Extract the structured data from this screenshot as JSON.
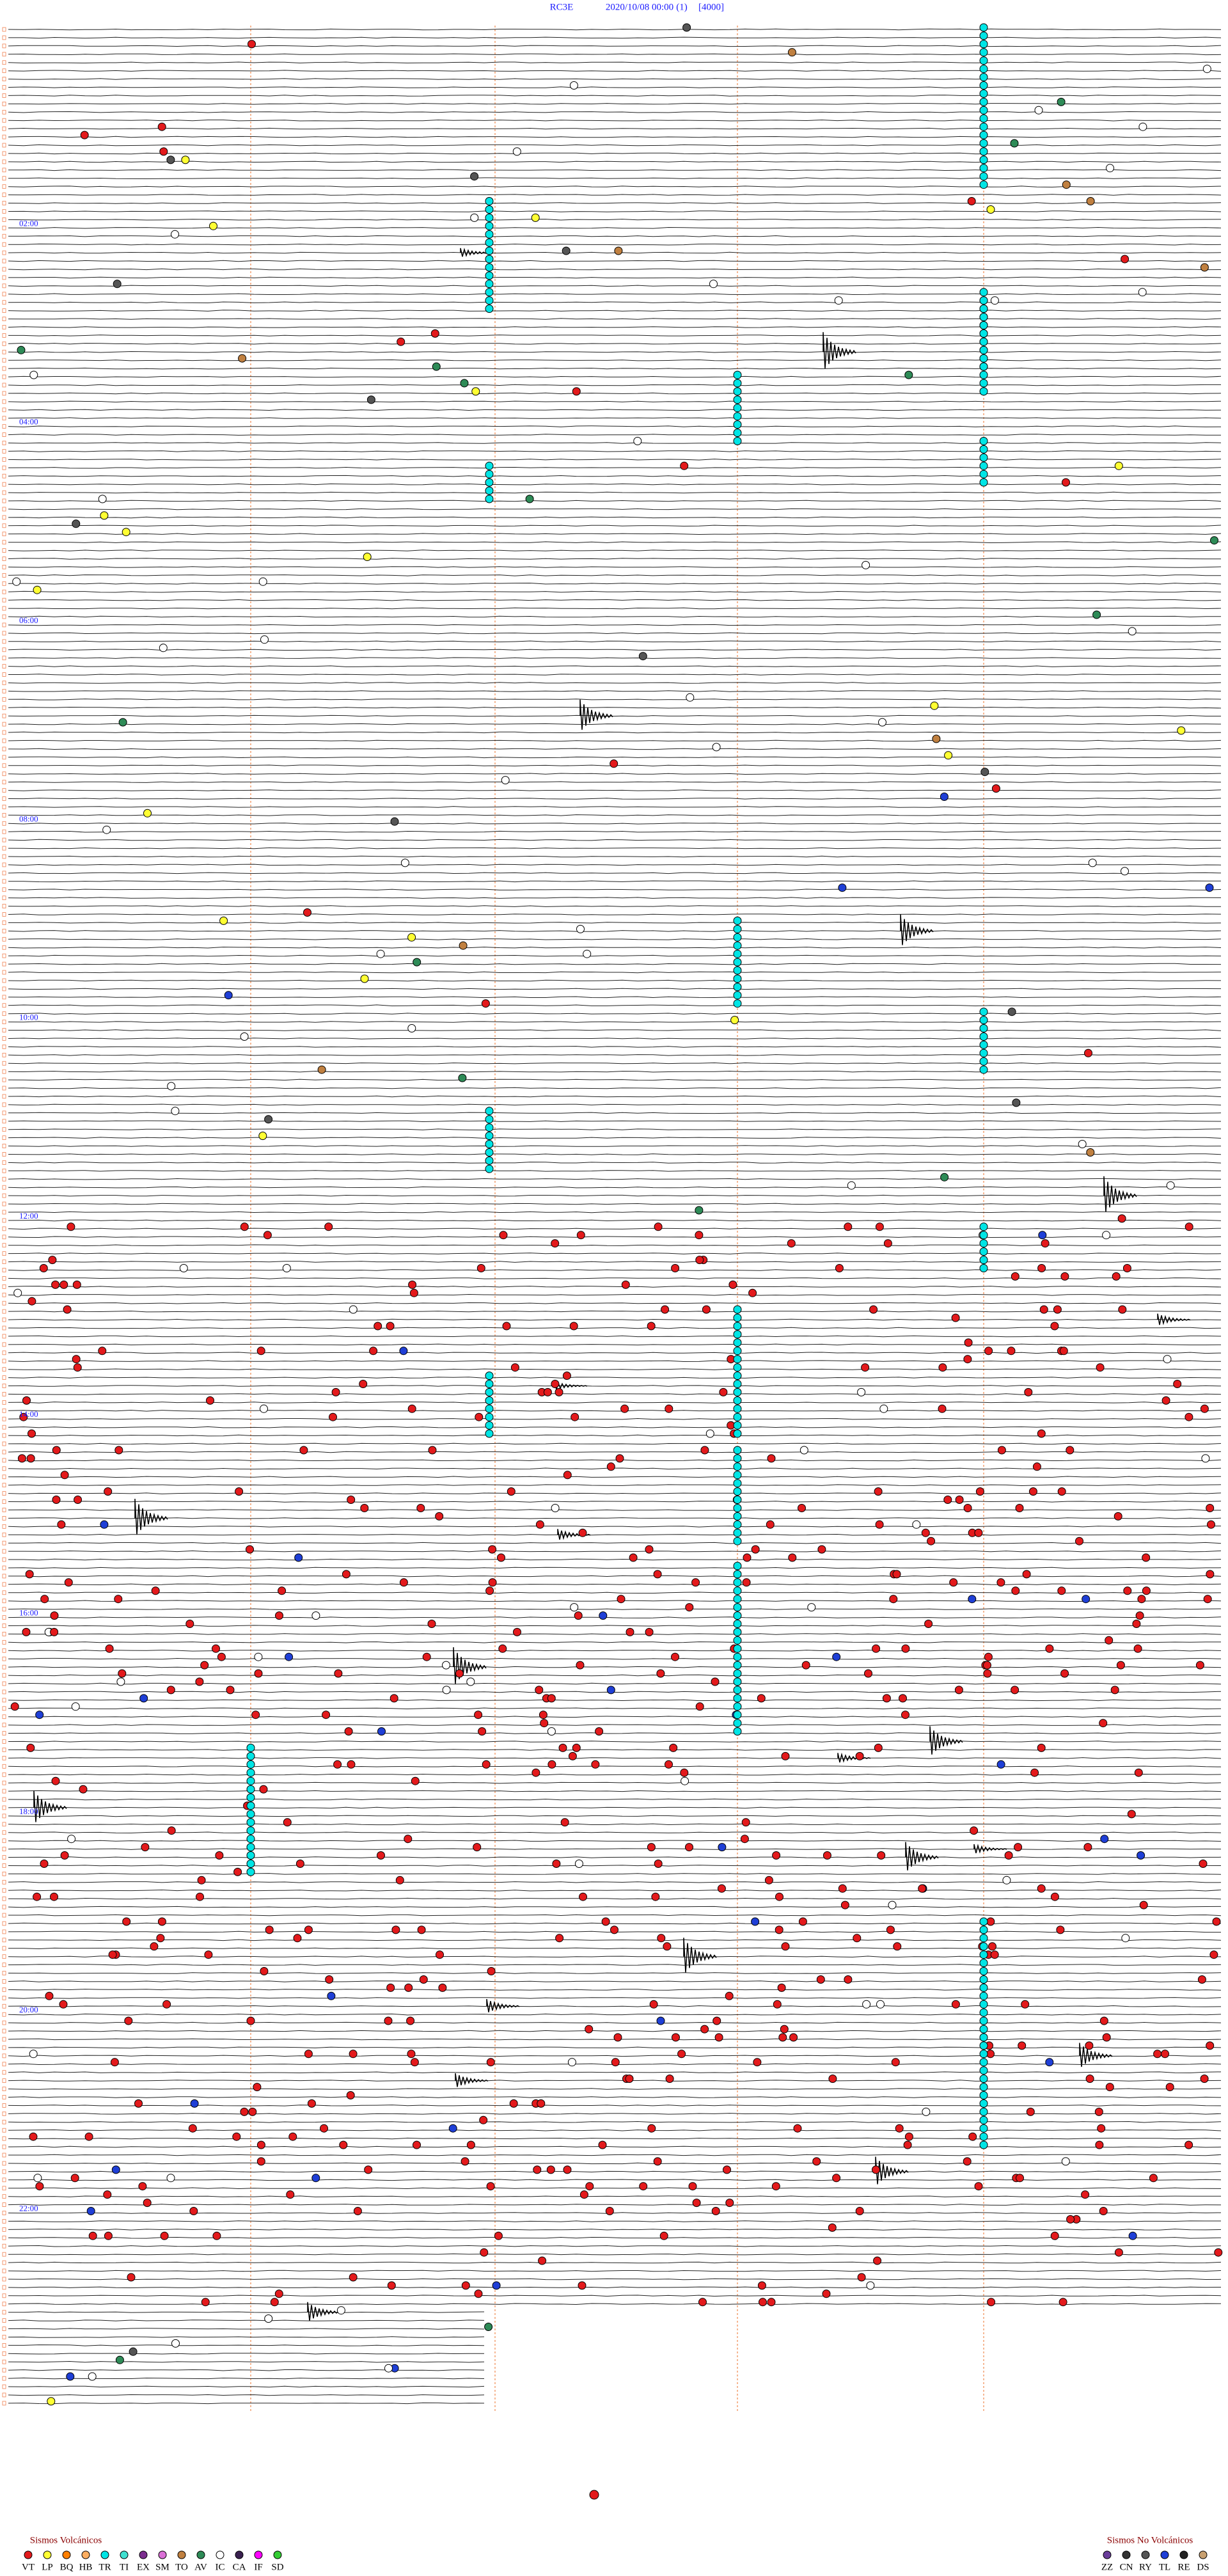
{
  "header": {
    "station": "RC3E",
    "datetime": "2020/10/08 00:00",
    "component": "(1)",
    "scale": "[4000]"
  },
  "hours": [
    "02:00",
    "04:00",
    "06:00",
    "08:00",
    "10:00",
    "12:00",
    "14:00",
    "16:00",
    "18:00",
    "20:00",
    "22:00"
  ],
  "legend": [
    {
      "title": "Sismos Volcánicos",
      "items": [
        {
          "label": "VT",
          "color": "#e31a1c"
        },
        {
          "label": "LP",
          "color": "#ffff33"
        },
        {
          "label": "BQ",
          "color": "#ff7f00"
        },
        {
          "label": "HB",
          "color": "#fdae61"
        },
        {
          "label": "TR",
          "color": "#00e5e5"
        },
        {
          "label": "TI",
          "color": "#40e0d0"
        },
        {
          "label": "EX",
          "color": "#7b2d8e"
        },
        {
          "label": "SM",
          "color": "#da70d6"
        },
        {
          "label": "TO",
          "color": "#c08040"
        },
        {
          "label": "AV",
          "color": "#2e8b57"
        },
        {
          "label": "IC",
          "color": "#ffffff"
        },
        {
          "label": "CA",
          "color": "#3a2050"
        },
        {
          "label": "IF",
          "color": "#ff00ff"
        },
        {
          "label": "SD",
          "color": "#33cc33"
        }
      ]
    },
    {
      "title": "Sismos No Volcánicos",
      "items": [
        {
          "label": "ZZ",
          "color": "#6a3d9a"
        },
        {
          "label": "CN",
          "color": "#333333"
        },
        {
          "label": "RY",
          "color": "#555555"
        },
        {
          "label": "TL",
          "color": "#1f3fd6"
        },
        {
          "label": "RE",
          "color": "#222222"
        },
        {
          "label": "DS",
          "color": "#c8a070"
        }
      ]
    }
  ]
}
